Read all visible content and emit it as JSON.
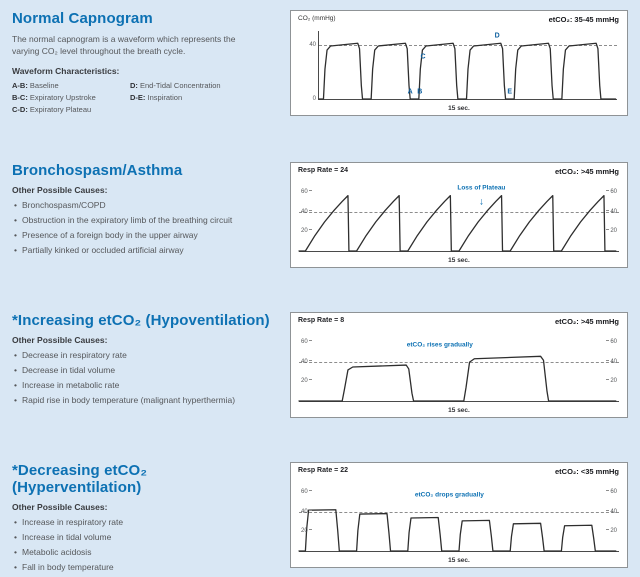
{
  "page": {
    "background_color": "#d9e7f4",
    "accent_color": "#0d71b3",
    "waveform_color": "#2e2e2e"
  },
  "sections": [
    {
      "title": "Normal Capnogram",
      "description": "The normal capnogram is a waveform which represents the varying CO₂ level throughout the breath cycle.",
      "subheading": "Waveform Characteristics:",
      "definitions_col1": [
        {
          "key": "A-B:",
          "value": "Baseline"
        },
        {
          "key": "B-C:",
          "value": "Expiratory Upstroke"
        },
        {
          "key": "C-D:",
          "value": "Expiratory Plateau"
        }
      ],
      "definitions_col2": [
        {
          "key": "D:",
          "value": "End-Tidal Concentration"
        },
        {
          "key": "D-E:",
          "value": "Inspiration"
        }
      ]
    },
    {
      "title": "Bronchospasm/Asthma",
      "subheading": "Other Possible Causes:",
      "bullets": [
        "Bronchospasm/COPD",
        "Obstruction in the expiratory limb of the breathing circuit",
        "Presence of a foreign body in the upper airway",
        "Partially kinked or occluded artificial airway"
      ]
    },
    {
      "title": "*Increasing etCO₂ (Hypoventilation)",
      "subheading": "Other Possible Causes:",
      "bullets": [
        "Decrease in respiratory rate",
        "Decrease in tidal volume",
        "Increase in metabolic rate",
        "Rapid rise in body temperature (malignant hyperthermia)"
      ]
    },
    {
      "title": "*Decreasing etCO₂ (Hyperventilation)",
      "subheading": "Other Possible Causes:",
      "bullets": [
        "Increase in respiratory rate",
        "Increase in tidal volume",
        "Metabolic acidosis",
        "Fall in body temperature"
      ]
    }
  ],
  "chart_data": [
    {
      "type": "line",
      "title": "Normal capnogram waveform",
      "header_left": "CO₂ (mmHg)",
      "header_right": "etCO₂: 35-45 mmHg",
      "xlabel": "15 sec.",
      "ylabel": "CO₂ (mmHg)",
      "ylim": [
        0,
        50
      ],
      "yticks_left": [
        40,
        0
      ],
      "yticks_right": [],
      "dashed_lines": [
        40
      ],
      "points": [
        [
          0,
          0
        ],
        [
          1.5,
          0
        ],
        [
          2,
          22
        ],
        [
          2.7,
          36
        ],
        [
          3.9,
          39
        ],
        [
          13,
          41
        ],
        [
          13.6,
          37
        ],
        [
          14.2,
          10
        ],
        [
          14.6,
          0
        ],
        [
          17.5,
          0
        ],
        [
          18,
          22
        ],
        [
          18.7,
          36
        ],
        [
          19.9,
          39
        ],
        [
          29,
          41
        ],
        [
          29.6,
          37
        ],
        [
          30.2,
          10
        ],
        [
          30.6,
          0
        ],
        [
          33.5,
          0
        ],
        [
          34,
          22
        ],
        [
          34.7,
          36
        ],
        [
          35.9,
          39
        ],
        [
          45,
          41
        ],
        [
          45.6,
          37
        ],
        [
          46.2,
          10
        ],
        [
          46.6,
          0
        ],
        [
          49.5,
          0
        ],
        [
          50,
          22
        ],
        [
          50.7,
          36
        ],
        [
          51.9,
          39
        ],
        [
          61,
          41
        ],
        [
          61.6,
          37
        ],
        [
          62.2,
          10
        ],
        [
          62.6,
          0
        ],
        [
          65.5,
          0
        ],
        [
          66,
          22
        ],
        [
          66.7,
          36
        ],
        [
          67.9,
          39
        ],
        [
          77,
          41
        ],
        [
          77.6,
          37
        ],
        [
          78.2,
          10
        ],
        [
          78.6,
          0
        ],
        [
          81.5,
          0
        ],
        [
          82,
          22
        ],
        [
          82.7,
          36
        ],
        [
          83.9,
          39
        ],
        [
          93,
          41
        ],
        [
          93.6,
          37
        ],
        [
          94.2,
          10
        ],
        [
          94.6,
          0
        ],
        [
          99.5,
          0
        ]
      ],
      "annotations": [
        {
          "text": "A",
          "x": 30.6,
          "y": 5.5,
          "cls": "letter",
          "name": "label-A-baseline"
        },
        {
          "text": "B",
          "x": 33.8,
          "y": 5.5,
          "cls": "letter",
          "name": "label-B-upstroke-start"
        },
        {
          "text": "C",
          "x": 34.9,
          "y": 31,
          "cls": "letter",
          "name": "label-C-plateau-start"
        },
        {
          "text": "D",
          "x": 59.8,
          "y": 46,
          "cls": "letter",
          "name": "label-D-end-tidal"
        },
        {
          "text": "E",
          "x": 64,
          "y": 5.5,
          "cls": "letter",
          "name": "label-E-inspiration"
        }
      ]
    },
    {
      "type": "line",
      "title": "Bronchospasm/Asthma shark-fin waveform",
      "header_left": "Resp Rate = 24",
      "header_right": "etCO₂: >45 mmHg",
      "xlabel": "15 sec.",
      "ylim": [
        0,
        70
      ],
      "yticks_left": [
        60,
        40,
        20
      ],
      "yticks_right": [
        60,
        40,
        20
      ],
      "dashed_lines": [
        40
      ],
      "points": [
        [
          0,
          0
        ],
        [
          2,
          0
        ],
        [
          5,
          16
        ],
        [
          8,
          30
        ],
        [
          11,
          42
        ],
        [
          13.5,
          51
        ],
        [
          15.3,
          57
        ],
        [
          15.6,
          0
        ],
        [
          18,
          0
        ],
        [
          21,
          16
        ],
        [
          24,
          30
        ],
        [
          27,
          42
        ],
        [
          29.5,
          51
        ],
        [
          31.3,
          57
        ],
        [
          31.6,
          0
        ],
        [
          34,
          0
        ],
        [
          37,
          16
        ],
        [
          40,
          30
        ],
        [
          43,
          42
        ],
        [
          45.5,
          51
        ],
        [
          47.3,
          57
        ],
        [
          47.6,
          0
        ],
        [
          50,
          0
        ],
        [
          53,
          16
        ],
        [
          56,
          30
        ],
        [
          59,
          42
        ],
        [
          61.5,
          51
        ],
        [
          63.3,
          57
        ],
        [
          63.6,
          0
        ],
        [
          66,
          0
        ],
        [
          69,
          16
        ],
        [
          72,
          30
        ],
        [
          75,
          42
        ],
        [
          77.5,
          51
        ],
        [
          79.3,
          57
        ],
        [
          79.6,
          0
        ],
        [
          82,
          0
        ],
        [
          85,
          16
        ],
        [
          88,
          30
        ],
        [
          91,
          42
        ],
        [
          93.5,
          51
        ],
        [
          95.3,
          57
        ],
        [
          95.6,
          0
        ],
        [
          99,
          0
        ]
      ],
      "annotations": [
        {
          "text": "Loss of Plateau",
          "x": 57,
          "y": 65,
          "name": "loss-of-plateau-label"
        },
        {
          "text": "↓",
          "x": 57,
          "y": 50,
          "cls": "arrow",
          "name": "down-arrow-annotation"
        }
      ]
    },
    {
      "type": "line",
      "title": "Increasing etCO₂ (hypoventilation) waveform",
      "header_left": "Resp Rate = 8",
      "header_right": "etCO₂: >45 mmHg",
      "xlabel": "15 sec.",
      "ylim": [
        0,
        70
      ],
      "yticks_left": [
        60,
        40,
        20
      ],
      "yticks_right": [
        60,
        40,
        20
      ],
      "dashed_lines": [
        40
      ],
      "points": [
        [
          0,
          0
        ],
        [
          13.5,
          0
        ],
        [
          14.2,
          12
        ],
        [
          15.3,
          32
        ],
        [
          16.8,
          35
        ],
        [
          33.5,
          37
        ],
        [
          34.3,
          33
        ],
        [
          35.3,
          8
        ],
        [
          35.8,
          0
        ],
        [
          51.5,
          0
        ],
        [
          52.2,
          14
        ],
        [
          53.3,
          40
        ],
        [
          54.8,
          43.5
        ],
        [
          75.5,
          46
        ],
        [
          76.4,
          42
        ],
        [
          77.5,
          10
        ],
        [
          78,
          0
        ],
        [
          99,
          0
        ]
      ],
      "annotations": [
        {
          "text": "etCO₂ rises gradually",
          "x": 44,
          "y": 57,
          "name": "etco2-rises-label"
        }
      ]
    },
    {
      "type": "line",
      "title": "Decreasing etCO₂ (hyperventilation) waveform",
      "header_left": "Resp Rate = 22",
      "header_right": "etCO₂: <35 mmHg",
      "xlabel": "15 sec.",
      "ylim": [
        0,
        70
      ],
      "yticks_left": [
        60,
        40,
        20
      ],
      "yticks_right": [
        60,
        40,
        20
      ],
      "dashed_lines": [
        40
      ],
      "points": [
        [
          0,
          0
        ],
        [
          2,
          0
        ],
        [
          2.4,
          23
        ],
        [
          3,
          42
        ],
        [
          11.5,
          42.5
        ],
        [
          12.1,
          21
        ],
        [
          12.6,
          0
        ],
        [
          18,
          0
        ],
        [
          18.4,
          21
        ],
        [
          19,
          38
        ],
        [
          27.5,
          38.5
        ],
        [
          28.1,
          19
        ],
        [
          28.6,
          0
        ],
        [
          34,
          0
        ],
        [
          34.4,
          19
        ],
        [
          35,
          34
        ],
        [
          43.5,
          34.5
        ],
        [
          44.1,
          17
        ],
        [
          44.6,
          0
        ],
        [
          50,
          0
        ],
        [
          50.4,
          17
        ],
        [
          51,
          31
        ],
        [
          59.5,
          31.5
        ],
        [
          60.1,
          15.5
        ],
        [
          60.6,
          0
        ],
        [
          66,
          0
        ],
        [
          66.4,
          15
        ],
        [
          67,
          28
        ],
        [
          75.5,
          28.5
        ],
        [
          76.1,
          14
        ],
        [
          76.6,
          0
        ],
        [
          82,
          0
        ],
        [
          82.4,
          14
        ],
        [
          83,
          26
        ],
        [
          91.5,
          26.5
        ],
        [
          92.1,
          13
        ],
        [
          92.6,
          0
        ],
        [
          99,
          0
        ]
      ],
      "annotations": [
        {
          "text": "etCO₂ drops gradually",
          "x": 47,
          "y": 57,
          "name": "etco2-drops-label"
        }
      ]
    }
  ]
}
